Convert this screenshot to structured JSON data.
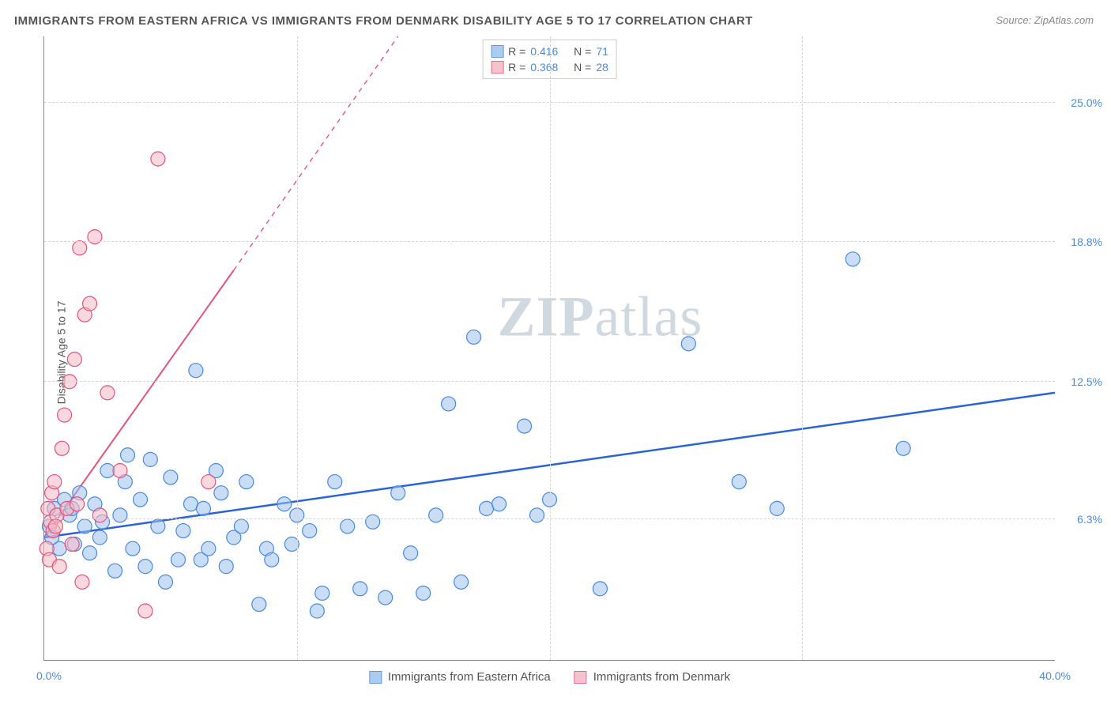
{
  "title": "IMMIGRANTS FROM EASTERN AFRICA VS IMMIGRANTS FROM DENMARK DISABILITY AGE 5 TO 17 CORRELATION CHART",
  "source": "Source: ZipAtlas.com",
  "y_axis_label": "Disability Age 5 to 17",
  "watermark_bold": "ZIP",
  "watermark_light": "atlas",
  "chart": {
    "type": "scatter-with-regression",
    "background_color": "#ffffff",
    "grid_color": "#d5d5d5",
    "axis_color": "#888888",
    "xlim": [
      0,
      40
    ],
    "ylim": [
      0,
      28
    ],
    "x_ticks": [
      {
        "val": 0.0,
        "label": "0.0%",
        "pos_pct": 0
      },
      {
        "val": 40.0,
        "label": "40.0%",
        "pos_pct": 100
      }
    ],
    "x_minor_ticks_pct": [
      25,
      50,
      75
    ],
    "y_ticks": [
      {
        "val": 6.3,
        "label": "6.3%",
        "pos_pct": 22.5
      },
      {
        "val": 12.5,
        "label": "12.5%",
        "pos_pct": 44.6
      },
      {
        "val": 18.8,
        "label": "18.8%",
        "pos_pct": 67.1
      },
      {
        "val": 25.0,
        "label": "25.0%",
        "pos_pct": 89.3
      }
    ],
    "series": [
      {
        "key": "eastern_africa",
        "label": "Immigrants from Eastern Africa",
        "marker_fill": "#9dc3ef",
        "marker_stroke": "#4a89dc",
        "marker_fill_opacity": 0.55,
        "marker_radius": 9,
        "line_color": "#2962d9",
        "line_width": 2.5,
        "R": "0.416",
        "N": "71",
        "regression": {
          "x1": 0,
          "y1": 5.5,
          "x2": 40,
          "y2": 12.0
        },
        "points": [
          [
            0.2,
            6.0
          ],
          [
            0.4,
            6.8
          ],
          [
            0.6,
            5.0
          ],
          [
            0.8,
            7.2
          ],
          [
            1.0,
            6.5
          ],
          [
            1.2,
            5.2
          ],
          [
            1.4,
            7.5
          ],
          [
            1.6,
            6.0
          ],
          [
            1.8,
            4.8
          ],
          [
            2.0,
            7.0
          ],
          [
            2.2,
            5.5
          ],
          [
            2.5,
            8.5
          ],
          [
            2.8,
            4.0
          ],
          [
            3.0,
            6.5
          ],
          [
            3.2,
            8.0
          ],
          [
            3.5,
            5.0
          ],
          [
            3.8,
            7.2
          ],
          [
            4.0,
            4.2
          ],
          [
            4.2,
            9.0
          ],
          [
            4.5,
            6.0
          ],
          [
            4.8,
            3.5
          ],
          [
            5.0,
            8.2
          ],
          [
            5.5,
            5.8
          ],
          [
            5.8,
            7.0
          ],
          [
            6.0,
            13.0
          ],
          [
            6.2,
            4.5
          ],
          [
            6.5,
            5.0
          ],
          [
            6.8,
            8.5
          ],
          [
            7.0,
            7.5
          ],
          [
            7.2,
            4.2
          ],
          [
            7.5,
            5.5
          ],
          [
            8.0,
            8.0
          ],
          [
            8.5,
            2.5
          ],
          [
            8.8,
            5.0
          ],
          [
            9.0,
            4.5
          ],
          [
            9.5,
            7.0
          ],
          [
            10.0,
            6.5
          ],
          [
            10.5,
            5.8
          ],
          [
            10.8,
            2.2
          ],
          [
            11.0,
            3.0
          ],
          [
            11.5,
            8.0
          ],
          [
            12.0,
            6.0
          ],
          [
            12.5,
            3.2
          ],
          [
            13.0,
            6.2
          ],
          [
            13.5,
            2.8
          ],
          [
            14.0,
            7.5
          ],
          [
            14.5,
            4.8
          ],
          [
            15.0,
            3.0
          ],
          [
            15.5,
            6.5
          ],
          [
            16.0,
            11.5
          ],
          [
            16.5,
            3.5
          ],
          [
            17.0,
            14.5
          ],
          [
            17.5,
            6.8
          ],
          [
            18.0,
            7.0
          ],
          [
            19.0,
            10.5
          ],
          [
            19.5,
            6.5
          ],
          [
            20.0,
            7.2
          ],
          [
            22.0,
            3.2
          ],
          [
            25.5,
            14.2
          ],
          [
            27.5,
            8.0
          ],
          [
            29.0,
            6.8
          ],
          [
            32.0,
            18.0
          ],
          [
            34.0,
            9.5
          ],
          [
            0.3,
            5.5
          ],
          [
            1.1,
            6.8
          ],
          [
            2.3,
            6.2
          ],
          [
            3.3,
            9.2
          ],
          [
            5.3,
            4.5
          ],
          [
            6.3,
            6.8
          ],
          [
            7.8,
            6.0
          ],
          [
            9.8,
            5.2
          ]
        ]
      },
      {
        "key": "denmark",
        "label": "Immigrants from Denmark",
        "marker_fill": "#f5b8c5",
        "marker_stroke": "#e6537a",
        "marker_fill_opacity": 0.55,
        "marker_radius": 9,
        "line_color": "#e6537a",
        "line_width": 2,
        "R": "0.368",
        "N": "28",
        "regression": {
          "x1": 0,
          "y1": 5.5,
          "x2": 7.5,
          "y2": 17.5
        },
        "regression_dashed": {
          "x1": 7.5,
          "y1": 17.5,
          "x2": 14,
          "y2": 28
        },
        "points": [
          [
            0.1,
            5.0
          ],
          [
            0.15,
            6.8
          ],
          [
            0.2,
            4.5
          ],
          [
            0.25,
            6.2
          ],
          [
            0.3,
            7.5
          ],
          [
            0.35,
            5.8
          ],
          [
            0.4,
            8.0
          ],
          [
            0.5,
            6.5
          ],
          [
            0.6,
            4.2
          ],
          [
            0.7,
            9.5
          ],
          [
            0.8,
            11.0
          ],
          [
            0.9,
            6.8
          ],
          [
            1.0,
            12.5
          ],
          [
            1.1,
            5.2
          ],
          [
            1.2,
            13.5
          ],
          [
            1.3,
            7.0
          ],
          [
            1.4,
            18.5
          ],
          [
            1.5,
            3.5
          ],
          [
            1.6,
            15.5
          ],
          [
            1.8,
            16.0
          ],
          [
            2.0,
            19.0
          ],
          [
            2.2,
            6.5
          ],
          [
            2.5,
            12.0
          ],
          [
            3.0,
            8.5
          ],
          [
            4.0,
            2.2
          ],
          [
            4.5,
            22.5
          ],
          [
            6.5,
            8.0
          ],
          [
            0.45,
            6.0
          ]
        ]
      }
    ],
    "legend_top": {
      "r_prefix": "R =",
      "n_prefix": "N ="
    }
  }
}
